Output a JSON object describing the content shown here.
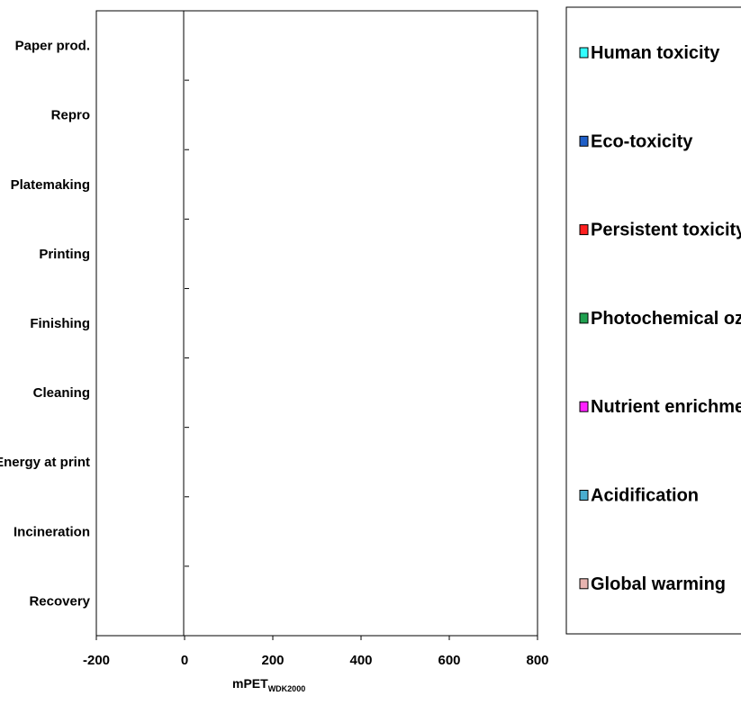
{
  "chart_data": {
    "type": "bar",
    "orientation": "horizontal",
    "stacked": true,
    "categories": [
      "Paper prod.",
      "Repro",
      "Platemaking",
      "Printing",
      "Finishing",
      "Cleaning",
      "Energy at print",
      "Incineration",
      "Recovery"
    ],
    "series": [
      {
        "name": "Human toxicity",
        "color": "#33ffff",
        "values": [
          0,
          0,
          0,
          0,
          0,
          0,
          0,
          0,
          0
        ]
      },
      {
        "name": "Eco-toxicity",
        "color": "#1f5fc8",
        "values": [
          0,
          0,
          0,
          0,
          0,
          0,
          0,
          0,
          0
        ]
      },
      {
        "name": "Persistent toxicity",
        "color": "#ff2020",
        "values": [
          0,
          0,
          0,
          0,
          0,
          0,
          0,
          0,
          0
        ]
      },
      {
        "name": "Photochemical ozone",
        "color": "#20a050",
        "values": [
          0,
          0,
          0,
          0,
          0,
          0,
          0,
          0,
          0
        ]
      },
      {
        "name": "Nutrient enrichment",
        "color": "#ff20ff",
        "values": [
          0,
          0,
          0,
          0,
          0,
          0,
          0,
          0,
          0
        ]
      },
      {
        "name": "Acidification",
        "color": "#4aaed0",
        "values": [
          0,
          0,
          0,
          0,
          0,
          0,
          0,
          0,
          0
        ]
      },
      {
        "name": "Global warming",
        "color": "#e8b4b0",
        "values": [
          0,
          0,
          0,
          0,
          0,
          0,
          0,
          0,
          0
        ]
      }
    ],
    "xlim": [
      -200,
      800
    ],
    "xticks": [
      "-200",
      "0",
      "200",
      "400",
      "600",
      "800"
    ],
    "xlabel_main": "mPET",
    "xlabel_sub": "WDK2000",
    "grid": false,
    "legend_position": "right"
  }
}
